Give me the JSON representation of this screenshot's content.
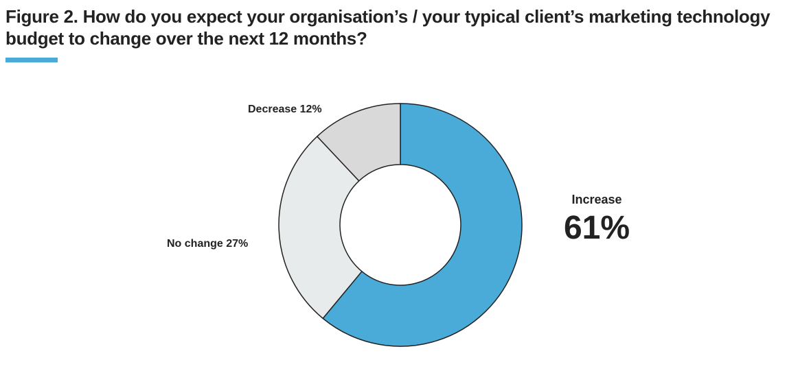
{
  "header": {
    "title": "Figure 2. How do you expect your organisation’s / your typical client’s marketing technology budget to change over the next 12 months?",
    "accent_color": "#4aabd8"
  },
  "chart_data": {
    "type": "pie",
    "donut": true,
    "title": "",
    "slices": [
      {
        "name": "Increase",
        "value": 61,
        "label": "Increase",
        "value_label": "61%",
        "color": "#4aabd8"
      },
      {
        "name": "No change",
        "value": 27,
        "label": "No change 27%",
        "color": "#e8ebeb"
      },
      {
        "name": "Decrease",
        "value": 12,
        "label": "Decrease 12%",
        "color": "#d9d9d9"
      }
    ],
    "stroke_color": "#222222",
    "legend": "none"
  }
}
